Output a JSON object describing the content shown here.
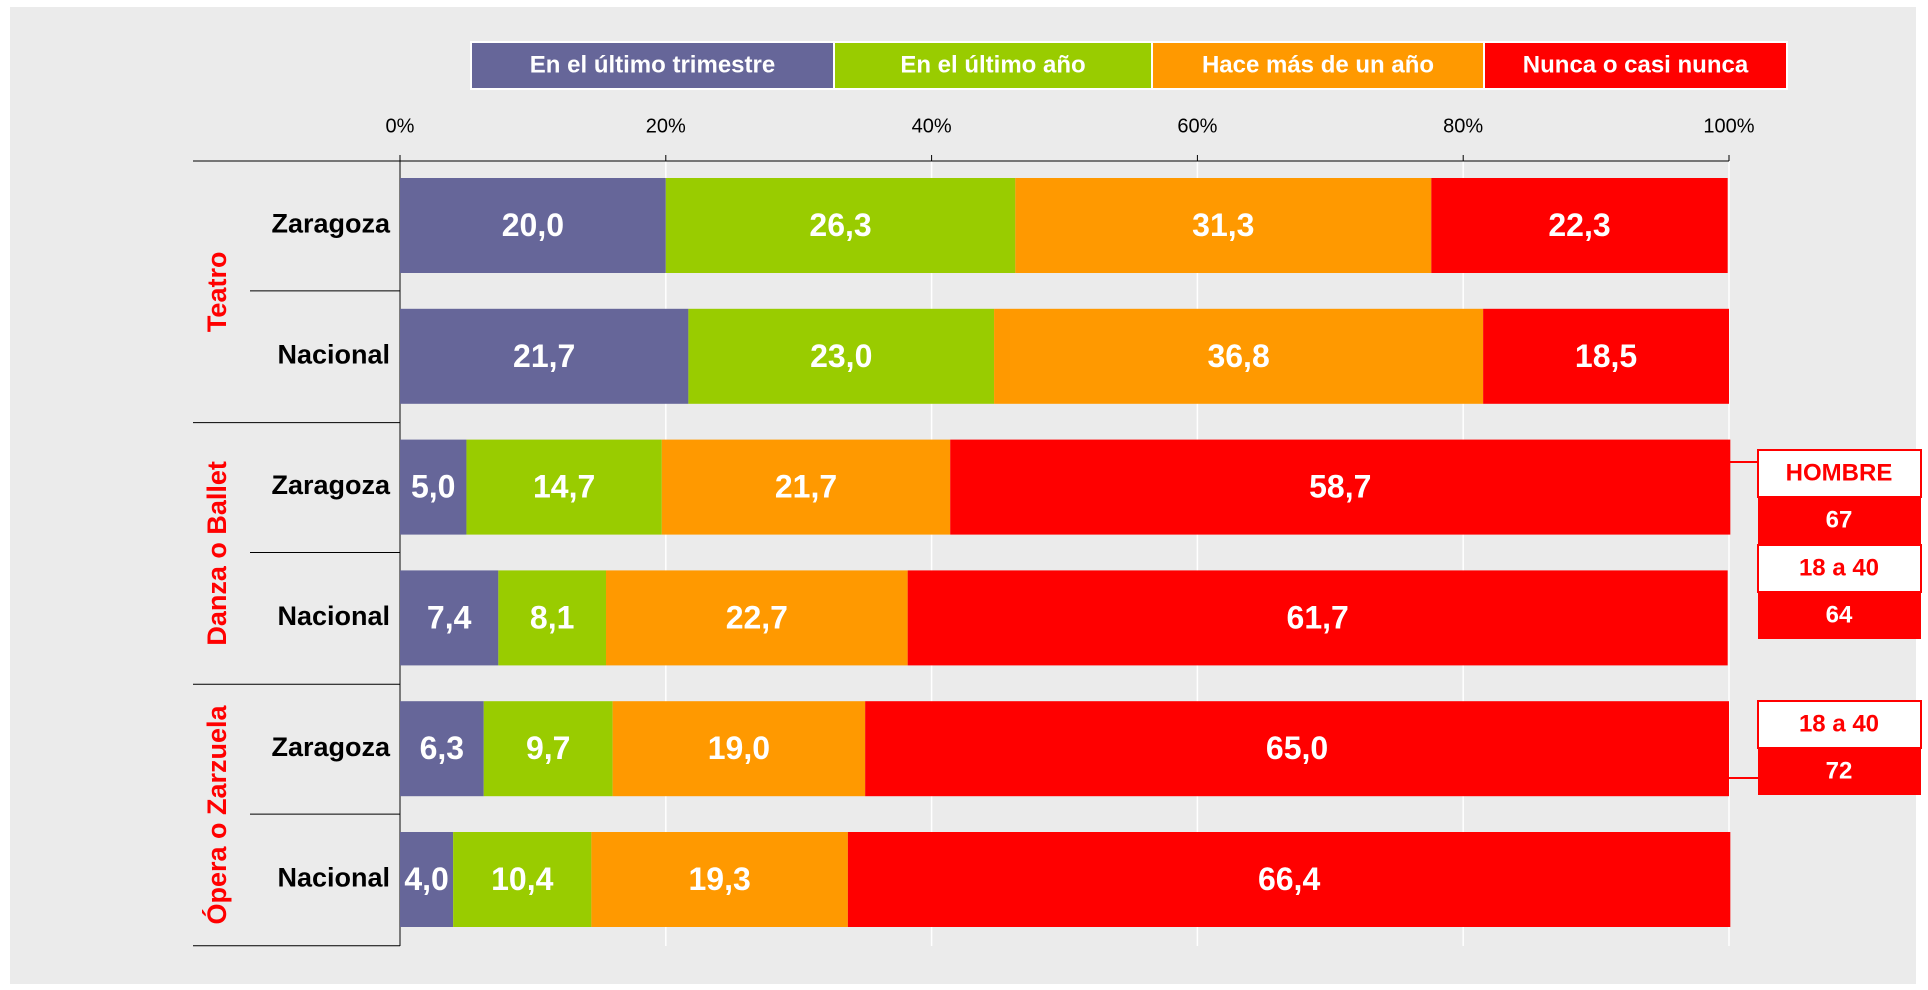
{
  "chart_data": {
    "type": "stacked_barh",
    "groups": [
      "Teatro",
      "Danza o Ballet",
      "Ópera o Zarzuela"
    ],
    "categories": [
      "Zaragoza",
      "Nacional",
      "Zaragoza",
      "Nacional",
      "Zaragoza",
      "Nacional"
    ],
    "series": [
      {
        "name": "En el último trimestre",
        "color": "#666699",
        "values": [
          20.0,
          21.7,
          5.0,
          7.4,
          6.3,
          4.0
        ],
        "value_labels": [
          "20,0",
          "21,7",
          "5,0",
          "7,4",
          "6,3",
          "4,0"
        ]
      },
      {
        "name": "En el último año",
        "color": "#99cc00",
        "values": [
          26.3,
          23.0,
          14.7,
          8.1,
          9.7,
          10.4
        ],
        "value_labels": [
          "26,3",
          "23,0",
          "14,7",
          "8,1",
          "9,7",
          "10,4"
        ]
      },
      {
        "name": "Hace más de un año",
        "color": "#ff9900",
        "values": [
          31.3,
          36.8,
          21.7,
          22.7,
          19.0,
          19.3
        ],
        "value_labels": [
          "31,3",
          "36,8",
          "21,7",
          "22,7",
          "19,0",
          "19,3"
        ]
      },
      {
        "name": "Nunca o casi nunca",
        "color": "#ff0000",
        "values": [
          22.3,
          18.5,
          58.7,
          61.7,
          65.0,
          66.4
        ],
        "value_labels": [
          "22,3",
          "18,5",
          "58,7",
          "61,7",
          "65,0",
          "66,4"
        ]
      }
    ],
    "xlim": [
      0,
      100
    ],
    "xticks": [
      {
        "value": 0,
        "label": "0%"
      },
      {
        "value": 20,
        "label": "20%"
      },
      {
        "value": 40,
        "label": "40%"
      },
      {
        "value": 60,
        "label": "60%"
      },
      {
        "value": 80,
        "label": "80%"
      },
      {
        "value": 100,
        "label": "100%"
      }
    ],
    "grid": true,
    "legend": "top",
    "annotations": [
      {
        "label": "HOMBRE",
        "value": 67
      },
      {
        "label": "18 a 40",
        "value": 64
      },
      {
        "label": "18 a 40",
        "value": 72
      }
    ]
  }
}
